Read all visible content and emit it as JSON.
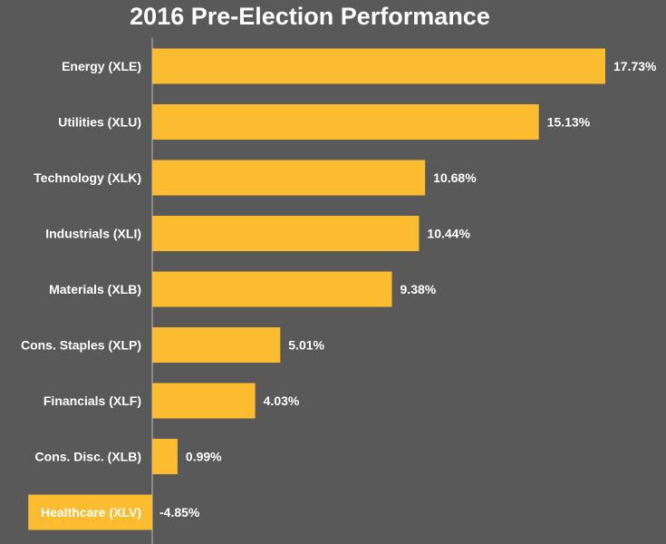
{
  "chart_data": {
    "type": "bar",
    "orientation": "horizontal",
    "title": "2016 Pre-Election Performance",
    "categories": [
      "Energy (XLE)",
      "Utilities (XLU)",
      "Technology (XLK)",
      "Industrials (XLI)",
      "Materials (XLB)",
      "Cons. Staples (XLP)",
      "Financials (XLF)",
      "Cons. Disc. (XLB)",
      "Healthcare (XLV)"
    ],
    "values": [
      17.73,
      15.13,
      10.68,
      10.44,
      9.38,
      5.01,
      4.03,
      0.99,
      -4.85
    ],
    "value_labels": [
      "17.73%",
      "15.13%",
      "10.68%",
      "10.44%",
      "9.38%",
      "5.01%",
      "4.03%",
      "0.99%",
      "-4.85%"
    ],
    "xlim": [
      -4.85,
      17.73
    ],
    "xlabel": "",
    "ylabel": "",
    "grid": false,
    "legend": "none"
  },
  "colors": {
    "background": "#595959",
    "bar": "#fbbd2f",
    "text": "#ffffff",
    "axis": "#bdbdbd"
  }
}
